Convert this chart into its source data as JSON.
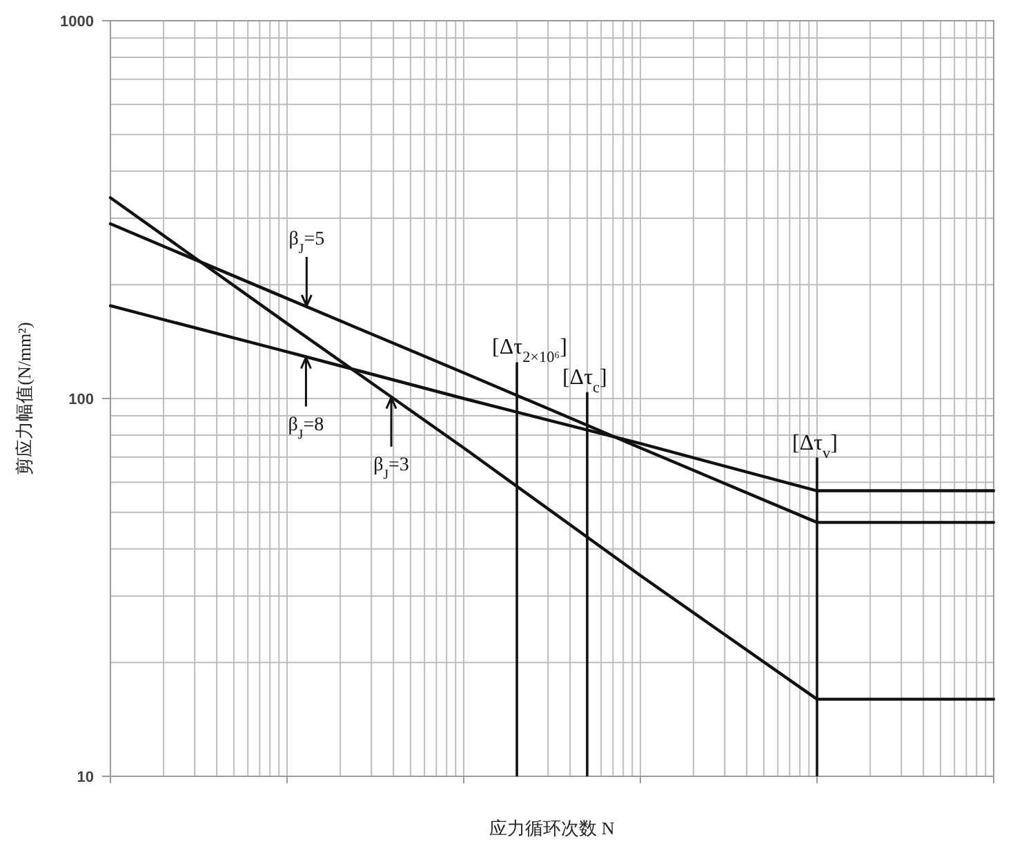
{
  "chart_data": {
    "type": "line",
    "xlabel": "应力循环次数 N",
    "ylabel": "剪应力幅值(N/mm²)",
    "categories": [
      null,
      null,
      null,
      null,
      null,
      null
    ],
    "series": [
      {
        "color": "#111111",
        "values": [
          290,
          184,
          117,
          74,
          47,
          47
        ]
      },
      {
        "color": "#111111",
        "values": [
          176,
          133,
          100,
          76,
          57,
          57
        ]
      },
      {
        "color": "#111111",
        "values": [
          340,
          158,
          74,
          34,
          16,
          16
        ]
      }
    ],
    "log": "xy",
    "ylim": [
      10,
      1000
    ],
    "yticks": [
      10,
      100,
      1000
    ],
    "grid": true,
    "annotations": [
      {
        "text": "β$_{J}$=5",
        "y": 175
      },
      {
        "text": "β$_{J}$=8",
        "y": 129
      },
      {
        "text": "β$_{J}$=3",
        "y": 101
      },
      "[Δτ$_{2×10⁶}$]",
      "[Δτ$_{c}$]",
      "[Δτ$_{v}$]"
    ]
  }
}
